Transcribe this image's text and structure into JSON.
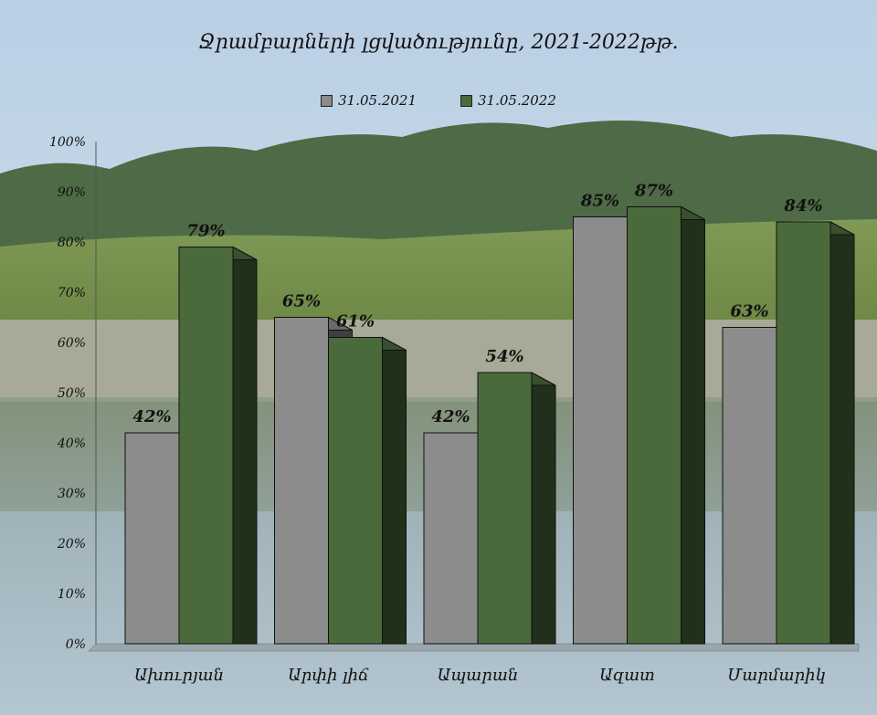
{
  "chart_data": {
    "type": "bar",
    "title": "Ջրամբարների լցվածությունը,  2021-2022թթ.",
    "categories": [
      "Ախուրյան",
      "Արփի լիճ",
      "Ապարան",
      "Ազատ",
      "Մարմարիկ"
    ],
    "series": [
      {
        "name": "31.05.2021",
        "values": [
          42,
          65,
          42,
          85,
          63
        ],
        "color": "#8c8c8c"
      },
      {
        "name": "31.05.2022",
        "values": [
          79,
          61,
          54,
          87,
          84
        ],
        "color": "#4a6a3c"
      }
    ],
    "ylim": [
      0,
      100
    ],
    "yticks": [
      "0%",
      "10%",
      "20%",
      "30%",
      "40%",
      "50%",
      "60%",
      "70%",
      "80%",
      "90%",
      "100%"
    ],
    "value_suffix": "%",
    "legend_position": "top-center",
    "grid": false
  }
}
